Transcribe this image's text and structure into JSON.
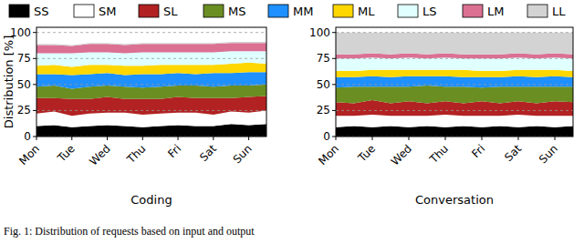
{
  "chart_data": [
    {
      "type": "area",
      "stacked": true,
      "grid": true,
      "legend": "top",
      "xlabel": "Coding",
      "ylabel": "Distribution [%]",
      "categories": [
        "Mon",
        null,
        "Tue",
        null,
        "Wed",
        null,
        "Thu",
        null,
        "Fri",
        null,
        "Sat",
        null,
        "Sun",
        null
      ],
      "ylim": [
        0,
        105
      ],
      "yticks": [
        0,
        25,
        50,
        75,
        100
      ],
      "series": [
        {
          "name": "SS",
          "color": "#000000",
          "values": [
            10,
            11,
            9,
            10,
            11,
            10,
            9,
            10,
            11,
            10,
            10,
            12,
            11,
            12
          ]
        },
        {
          "name": "SM",
          "color": "#ffffff",
          "values": [
            12,
            13,
            11,
            12,
            12,
            13,
            12,
            12,
            12,
            13,
            11,
            12,
            12,
            13
          ]
        },
        {
          "name": "SL",
          "color": "#b22222",
          "values": [
            15,
            13,
            16,
            14,
            15,
            13,
            15,
            14,
            15,
            14,
            16,
            13,
            15,
            14
          ]
        },
        {
          "name": "MS",
          "color": "#6b8e23",
          "values": [
            11,
            12,
            10,
            12,
            11,
            12,
            11,
            12,
            11,
            12,
            11,
            12,
            11,
            11
          ]
        },
        {
          "name": "MM",
          "color": "#1e90ff",
          "values": [
            12,
            11,
            13,
            12,
            12,
            11,
            13,
            12,
            12,
            11,
            13,
            12,
            13,
            12
          ]
        },
        {
          "name": "ML",
          "color": "#ffd700",
          "values": [
            8,
            9,
            8,
            9,
            8,
            9,
            8,
            9,
            8,
            9,
            8,
            9,
            9,
            8
          ]
        },
        {
          "name": "LS",
          "color": "#e0ffff",
          "values": [
            12,
            11,
            13,
            12,
            12,
            12,
            13,
            12,
            12,
            12,
            12,
            12,
            11,
            12
          ]
        },
        {
          "name": "LM",
          "color": "#db7093",
          "values": [
            8,
            8,
            7,
            8,
            8,
            8,
            8,
            8,
            8,
            8,
            8,
            8,
            8,
            8
          ]
        },
        {
          "name": "LL",
          "color": "#d3d3d3",
          "values": [
            1,
            1,
            1,
            1,
            1,
            1,
            1,
            1,
            1,
            1,
            1,
            1,
            1,
            1
          ]
        }
      ]
    },
    {
      "type": "area",
      "stacked": true,
      "grid": true,
      "xlabel": "Conversation",
      "categories": [
        "Mon",
        null,
        "Tue",
        null,
        "Wed",
        null,
        "Thu",
        null,
        "Fri",
        null,
        "Sat",
        null,
        "Sun",
        null
      ],
      "ylim": [
        0,
        105
      ],
      "yticks": [
        0,
        25,
        50,
        75,
        100
      ],
      "series": [
        {
          "name": "SS",
          "color": "#000000",
          "values": [
            9,
            10,
            9,
            10,
            9,
            10,
            9,
            10,
            9,
            10,
            9,
            10,
            9,
            10
          ]
        },
        {
          "name": "SM",
          "color": "#ffffff",
          "values": [
            11,
            10,
            12,
            10,
            11,
            10,
            12,
            10,
            11,
            10,
            12,
            10,
            11,
            10
          ]
        },
        {
          "name": "SL",
          "color": "#b22222",
          "values": [
            13,
            12,
            14,
            12,
            14,
            12,
            13,
            12,
            14,
            12,
            13,
            12,
            14,
            13
          ]
        },
        {
          "name": "MS",
          "color": "#6b8e23",
          "values": [
            14,
            16,
            13,
            16,
            14,
            17,
            14,
            16,
            13,
            16,
            14,
            16,
            14,
            15
          ]
        },
        {
          "name": "MM",
          "color": "#1e90ff",
          "values": [
            10,
            9,
            10,
            9,
            10,
            9,
            10,
            9,
            10,
            9,
            10,
            9,
            10,
            9
          ]
        },
        {
          "name": "ML",
          "color": "#ffd700",
          "values": [
            6,
            6,
            6,
            7,
            6,
            6,
            6,
            7,
            6,
            6,
            6,
            7,
            6,
            6
          ]
        },
        {
          "name": "LS",
          "color": "#e0ffff",
          "values": [
            12,
            12,
            12,
            11,
            12,
            11,
            12,
            11,
            12,
            12,
            12,
            11,
            12,
            12
          ]
        },
        {
          "name": "LM",
          "color": "#db7093",
          "values": [
            4,
            4,
            4,
            4,
            4,
            4,
            4,
            4,
            4,
            4,
            4,
            4,
            4,
            4
          ]
        },
        {
          "name": "LL",
          "color": "#d3d3d3",
          "values": [
            21,
            21,
            20,
            21,
            20,
            21,
            20,
            21,
            21,
            21,
            20,
            21,
            20,
            21
          ]
        }
      ]
    }
  ],
  "caption": "Fig. 1: Distribution of requests based on input and output"
}
